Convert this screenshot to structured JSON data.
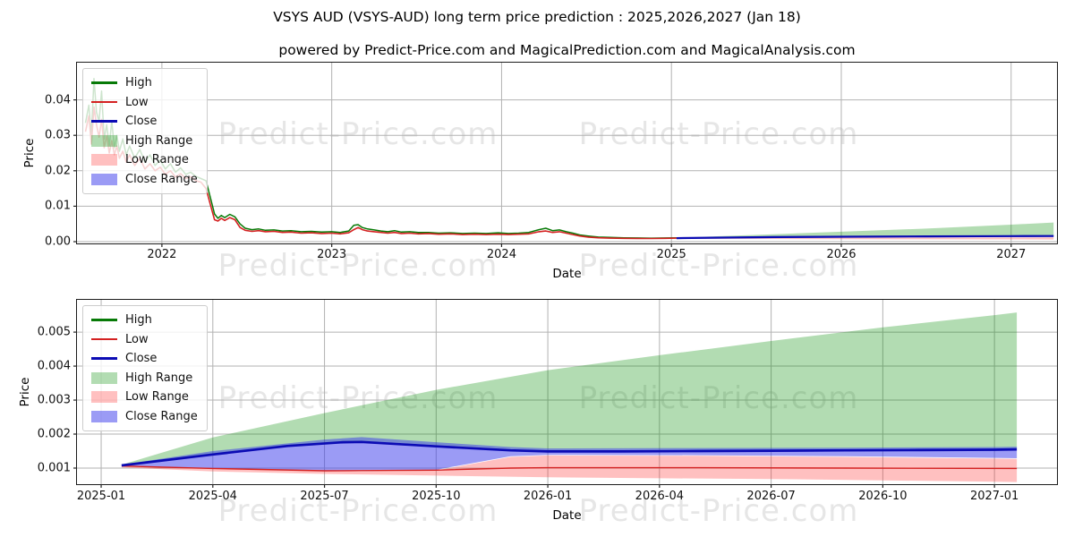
{
  "page": {
    "title": "VSYS AUD (VSYS-AUD) long term price prediction : 2025,2026,2027 (Jan 18)",
    "subtitle": "powered by Predict-Price.com and MagicalPrediction.com and MagicalAnalysis.com"
  },
  "watermark": {
    "text": "Predict-Price.com"
  },
  "colors": {
    "high": "#077a07",
    "low": "#d42121",
    "close": "#0b0bb4",
    "high_range": "rgba(0,140,0,0.30)",
    "low_range": "rgba(255,45,45,0.30)",
    "close_range": "rgba(55,55,235,0.50)"
  },
  "legend": {
    "position": "upper left",
    "items": [
      {
        "label": "High",
        "swatch": "line",
        "color_key": "high"
      },
      {
        "label": "Low",
        "swatch": "line",
        "color_key": "low"
      },
      {
        "label": "Close",
        "swatch": "line",
        "color_key": "close"
      },
      {
        "label": "High Range",
        "swatch": "patch",
        "color_key": "high_range"
      },
      {
        "label": "Low Range",
        "swatch": "patch",
        "color_key": "low_range"
      },
      {
        "label": "Close Range",
        "swatch": "patch",
        "color_key": "close_range"
      }
    ]
  },
  "chart_data": [
    {
      "type": "line",
      "name": "full-history-and-prediction",
      "xlabel": "Date",
      "ylabel": "Price",
      "grid": true,
      "xlim": [
        2021.5,
        2027.27
      ],
      "ylim": [
        -0.0005,
        0.0505
      ],
      "xticks": [
        {
          "label": "2022",
          "v": 2022
        },
        {
          "label": "2023",
          "v": 2023
        },
        {
          "label": "2024",
          "v": 2024
        },
        {
          "label": "2025",
          "v": 2025
        },
        {
          "label": "2026",
          "v": 2026
        },
        {
          "label": "2027",
          "v": 2027
        }
      ],
      "yticks": [
        {
          "label": "0.00",
          "v": 0.0
        },
        {
          "label": "0.01",
          "v": 0.01
        },
        {
          "label": "0.02",
          "v": 0.02
        },
        {
          "label": "0.03",
          "v": 0.03
        },
        {
          "label": "0.04",
          "v": 0.04
        }
      ],
      "hist_low_high": [
        [
          2021.55,
          0.031,
          0.0335
        ],
        [
          2021.57,
          0.0355,
          0.0385
        ],
        [
          2021.585,
          0.0275,
          0.03
        ],
        [
          2021.6,
          0.038,
          0.046
        ],
        [
          2021.615,
          0.033,
          0.0365
        ],
        [
          2021.63,
          0.0295,
          0.034
        ],
        [
          2021.645,
          0.0345,
          0.0425
        ],
        [
          2021.66,
          0.0265,
          0.029
        ],
        [
          2021.675,
          0.03,
          0.033
        ],
        [
          2021.69,
          0.025,
          0.027
        ],
        [
          2021.705,
          0.0285,
          0.034
        ],
        [
          2021.72,
          0.0245,
          0.0265
        ],
        [
          2021.735,
          0.027,
          0.03
        ],
        [
          2021.75,
          0.0235,
          0.0255
        ],
        [
          2021.77,
          0.0255,
          0.029
        ],
        [
          2021.79,
          0.0225,
          0.0245
        ],
        [
          2021.81,
          0.0245,
          0.027
        ],
        [
          2021.84,
          0.0215,
          0.0235
        ],
        [
          2021.87,
          0.0235,
          0.026
        ],
        [
          2021.9,
          0.0205,
          0.0225
        ],
        [
          2021.93,
          0.022,
          0.0245
        ],
        [
          2021.96,
          0.02,
          0.0215
        ],
        [
          2021.99,
          0.021,
          0.023
        ],
        [
          2022.02,
          0.019,
          0.0205
        ],
        [
          2022.05,
          0.02,
          0.022
        ],
        [
          2022.08,
          0.0182,
          0.0196
        ],
        [
          2022.11,
          0.0192,
          0.0208
        ],
        [
          2022.14,
          0.0178,
          0.019
        ],
        [
          2022.17,
          0.0183,
          0.0196
        ],
        [
          2022.2,
          0.0172,
          0.0184
        ],
        [
          2022.23,
          0.0168,
          0.0178
        ],
        [
          2022.26,
          0.015,
          0.0172
        ],
        [
          2022.285,
          0.0105,
          0.0125
        ],
        [
          2022.31,
          0.0062,
          0.0078
        ],
        [
          2022.33,
          0.0058,
          0.0066
        ],
        [
          2022.35,
          0.0066,
          0.0074
        ],
        [
          2022.37,
          0.006,
          0.0068
        ],
        [
          2022.4,
          0.0068,
          0.0077
        ],
        [
          2022.43,
          0.0062,
          0.007
        ],
        [
          2022.46,
          0.004,
          0.005
        ],
        [
          2022.49,
          0.0032,
          0.0038
        ],
        [
          2022.53,
          0.0029,
          0.0034
        ],
        [
          2022.57,
          0.0031,
          0.0036
        ],
        [
          2022.61,
          0.0028,
          0.0032
        ],
        [
          2022.66,
          0.0029,
          0.0033
        ],
        [
          2022.71,
          0.0026,
          0.003
        ],
        [
          2022.76,
          0.0027,
          0.0031
        ],
        [
          2022.82,
          0.0024,
          0.0028
        ],
        [
          2022.88,
          0.0025,
          0.0029
        ],
        [
          2022.94,
          0.0023,
          0.0027
        ],
        [
          2023.0,
          0.0024,
          0.0028
        ],
        [
          2023.05,
          0.0022,
          0.0026
        ],
        [
          2023.1,
          0.0025,
          0.003
        ],
        [
          2023.13,
          0.0034,
          0.0046
        ],
        [
          2023.155,
          0.004,
          0.0048
        ],
        [
          2023.18,
          0.0034,
          0.004
        ],
        [
          2023.21,
          0.003,
          0.0036
        ],
        [
          2023.25,
          0.0028,
          0.0033
        ],
        [
          2023.29,
          0.0026,
          0.003
        ],
        [
          2023.33,
          0.0024,
          0.0028
        ],
        [
          2023.37,
          0.0026,
          0.0031
        ],
        [
          2023.41,
          0.0023,
          0.0027
        ],
        [
          2023.46,
          0.0024,
          0.0028
        ],
        [
          2023.51,
          0.0022,
          0.0026
        ],
        [
          2023.57,
          0.0023,
          0.0026
        ],
        [
          2023.63,
          0.0021,
          0.0024
        ],
        [
          2023.7,
          0.0022,
          0.0025
        ],
        [
          2023.77,
          0.002,
          0.0023
        ],
        [
          2023.84,
          0.0021,
          0.0024
        ],
        [
          2023.91,
          0.002,
          0.0023
        ],
        [
          2023.98,
          0.0021,
          0.0025
        ],
        [
          2024.04,
          0.002,
          0.0023
        ],
        [
          2024.1,
          0.0021,
          0.0024
        ],
        [
          2024.16,
          0.0022,
          0.0026
        ],
        [
          2024.22,
          0.0028,
          0.0034
        ],
        [
          2024.26,
          0.003,
          0.0038
        ],
        [
          2024.3,
          0.0026,
          0.0031
        ],
        [
          2024.34,
          0.0028,
          0.0033
        ],
        [
          2024.38,
          0.0024,
          0.0028
        ],
        [
          2024.42,
          0.002,
          0.0024
        ],
        [
          2024.46,
          0.0016,
          0.0019
        ],
        [
          2024.51,
          0.0013,
          0.0016
        ],
        [
          2024.57,
          0.0011,
          0.0013
        ],
        [
          2024.64,
          0.001,
          0.0012
        ],
        [
          2024.72,
          0.00095,
          0.0011
        ],
        [
          2024.8,
          0.00092,
          0.00105
        ],
        [
          2024.88,
          0.0009,
          0.001
        ],
        [
          2024.96,
          0.00095,
          0.00105
        ],
        [
          2025.03,
          0.001,
          0.00108
        ]
      ],
      "areas": [
        {
          "name": "High Range",
          "color_key": "high_range",
          "upper": [
            [
              2025.03,
              0.0011
            ],
            [
              2025.3,
              0.0016
            ],
            [
              2025.6,
              0.0021
            ],
            [
              2026.0,
              0.0028
            ],
            [
              2026.5,
              0.0037
            ],
            [
              2027.0,
              0.0048
            ],
            [
              2027.25,
              0.0054
            ]
          ],
          "lower": [
            [
              2025.03,
              0.001
            ],
            [
              2025.3,
              0.00115
            ],
            [
              2025.6,
              0.00128
            ],
            [
              2026.0,
              0.0014
            ],
            [
              2026.5,
              0.0015
            ],
            [
              2027.0,
              0.00158
            ],
            [
              2027.25,
              0.0016
            ]
          ]
        },
        {
          "name": "Low Range",
          "color_key": "low_range",
          "upper": [
            [
              2025.03,
              0.001
            ],
            [
              2025.6,
              0.00105
            ],
            [
              2026.0,
              0.00112
            ],
            [
              2027.25,
              0.0012
            ]
          ],
          "lower": [
            [
              2025.03,
              0.00082
            ],
            [
              2025.6,
              0.00075
            ],
            [
              2026.0,
              0.0007
            ],
            [
              2026.5,
              0.00066
            ],
            [
              2027.25,
              0.00062
            ]
          ]
        },
        {
          "name": "Close Range",
          "color_key": "close_range",
          "upper": [
            [
              2025.03,
              0.00112
            ],
            [
              2025.6,
              0.00155
            ],
            [
              2026.0,
              0.00165
            ],
            [
              2026.5,
              0.00172
            ],
            [
              2027.25,
              0.00185
            ]
          ],
          "lower": [
            [
              2025.03,
              0.00088
            ],
            [
              2025.6,
              0.001
            ],
            [
              2026.0,
              0.00115
            ],
            [
              2026.5,
              0.00125
            ],
            [
              2027.25,
              0.00132
            ]
          ]
        }
      ],
      "pred_close": [
        [
          2025.03,
          0.001
        ],
        [
          2025.3,
          0.00115
        ],
        [
          2025.6,
          0.00128
        ],
        [
          2026.0,
          0.0014
        ],
        [
          2026.5,
          0.0015
        ],
        [
          2027.0,
          0.00158
        ],
        [
          2027.25,
          0.0016
        ]
      ]
    },
    {
      "type": "line",
      "name": "prediction-detail-2025-2027",
      "xlabel": "Date",
      "ylabel": "Price",
      "grid": true,
      "xlim": [
        -0.65,
        25.68
      ],
      "ylim": [
        0.000526,
        0.00595
      ],
      "xticks": [
        {
          "label": "2025-01",
          "v": 0
        },
        {
          "label": "2025-04",
          "v": 3
        },
        {
          "label": "2025-07",
          "v": 6
        },
        {
          "label": "2025-10",
          "v": 9
        },
        {
          "label": "2026-01",
          "v": 12
        },
        {
          "label": "2026-04",
          "v": 15
        },
        {
          "label": "2026-07",
          "v": 18
        },
        {
          "label": "2026-10",
          "v": 21
        },
        {
          "label": "2027-01",
          "v": 24
        }
      ],
      "yticks": [
        {
          "label": "0.001",
          "v": 0.001
        },
        {
          "label": "0.002",
          "v": 0.002
        },
        {
          "label": "0.003",
          "v": 0.003
        },
        {
          "label": "0.004",
          "v": 0.004
        },
        {
          "label": "0.005",
          "v": 0.005
        }
      ],
      "areas": [
        {
          "name": "High Range",
          "color_key": "high_range",
          "upper": [
            [
              0.55,
              0.0011
            ],
            [
              3,
              0.0019
            ],
            [
              6,
              0.00262
            ],
            [
              9,
              0.0033
            ],
            [
              12,
              0.00388
            ],
            [
              15,
              0.00432
            ],
            [
              18,
              0.00474
            ],
            [
              21,
              0.00514
            ],
            [
              24,
              0.0055
            ],
            [
              24.6,
              0.00558
            ]
          ],
          "lower": [
            [
              0.55,
              0.00108
            ],
            [
              3,
              0.00142
            ],
            [
              6,
              0.00174
            ],
            [
              7,
              0.0018
            ],
            [
              9,
              0.00168
            ],
            [
              11,
              0.00156
            ],
            [
              12,
              0.00153
            ],
            [
              16,
              0.00154
            ],
            [
              20,
              0.00156
            ],
            [
              24.6,
              0.00158
            ]
          ]
        },
        {
          "name": "Low Range",
          "color_key": "low_range",
          "upper": [
            [
              0.55,
              0.00104
            ],
            [
              3,
              0.00099
            ],
            [
              6,
              0.00092
            ],
            [
              7,
              0.0009
            ],
            [
              9,
              0.00093
            ],
            [
              11,
              0.00133
            ],
            [
              12,
              0.00137
            ],
            [
              16,
              0.00136
            ],
            [
              20,
              0.00133
            ],
            [
              24,
              0.00128
            ],
            [
              24.6,
              0.00127
            ]
          ],
          "lower": [
            [
              0.55,
              0.00102
            ],
            [
              3,
              0.0009
            ],
            [
              6,
              0.00083
            ],
            [
              9,
              0.00078
            ],
            [
              12,
              0.00073
            ],
            [
              15,
              0.0007
            ],
            [
              18,
              0.00068
            ],
            [
              21,
              0.00064
            ],
            [
              24,
              0.0006
            ],
            [
              24.6,
              0.00059
            ]
          ]
        },
        {
          "name": "Close Range",
          "color_key": "close_range",
          "upper": [
            [
              0.55,
              0.0011
            ],
            [
              3,
              0.0015
            ],
            [
              6,
              0.00184
            ],
            [
              7,
              0.00191
            ],
            [
              9,
              0.00176
            ],
            [
              11,
              0.00162
            ],
            [
              12,
              0.00158
            ],
            [
              16,
              0.00159
            ],
            [
              20,
              0.0016
            ],
            [
              24,
              0.00162
            ],
            [
              24.6,
              0.00163
            ]
          ],
          "lower": [
            [
              0.55,
              0.00105
            ],
            [
              3,
              0.001
            ],
            [
              6,
              0.00093
            ],
            [
              7,
              0.00091
            ],
            [
              9,
              0.00095
            ],
            [
              11,
              0.00135
            ],
            [
              12,
              0.00139
            ],
            [
              16,
              0.00138
            ],
            [
              20,
              0.00135
            ],
            [
              24,
              0.0013
            ],
            [
              24.6,
              0.00129
            ]
          ]
        }
      ],
      "pred_low": [
        [
          0.55,
          0.00106
        ],
        [
          3,
          0.00099
        ],
        [
          6,
          0.00092
        ],
        [
          9,
          0.00094
        ],
        [
          11,
          0.001
        ],
        [
          12,
          0.00101
        ],
        [
          16,
          0.00101
        ],
        [
          20,
          0.001
        ],
        [
          24.6,
          0.00099
        ]
      ],
      "pred_close": [
        [
          0.55,
          0.00108
        ],
        [
          3,
          0.0014
        ],
        [
          5,
          0.00165
        ],
        [
          6.5,
          0.00176
        ],
        [
          7,
          0.00177
        ],
        [
          9,
          0.00164
        ],
        [
          11,
          0.00152
        ],
        [
          12,
          0.00149
        ],
        [
          14,
          0.00149
        ],
        [
          16,
          0.0015
        ],
        [
          18,
          0.00151
        ],
        [
          20,
          0.00152
        ],
        [
          22,
          0.00153
        ],
        [
          24,
          0.00154
        ],
        [
          24.6,
          0.00155
        ]
      ]
    }
  ]
}
